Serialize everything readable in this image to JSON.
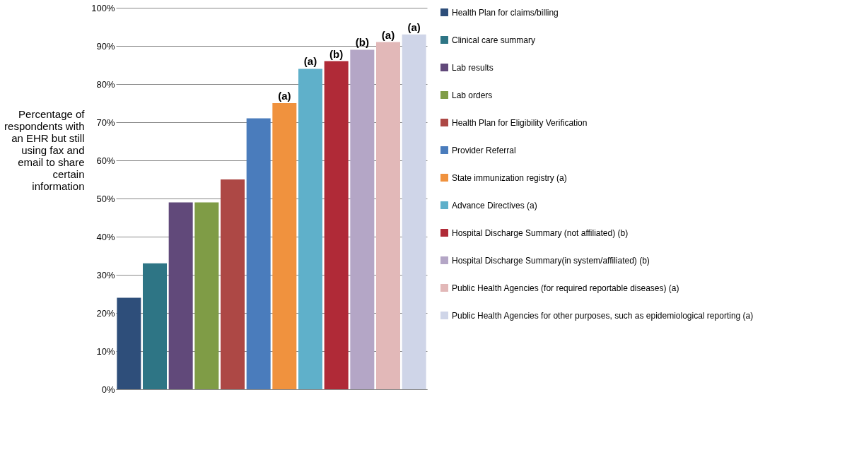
{
  "chart_data": {
    "type": "bar",
    "ylabel": "Percentage of respondents with an EHR but still using fax and email to share certain information",
    "categories": [
      null,
      null,
      null,
      null,
      null,
      null,
      null,
      null,
      null,
      null,
      null,
      null
    ],
    "series": [
      {
        "name": "Health Plan for claims/billing",
        "color": "#2e4e7a",
        "values": [
          24,
          null,
          null,
          null,
          null,
          null,
          null,
          null,
          null,
          null,
          null,
          null
        ]
      },
      {
        "name": "Clinical care summary",
        "color": "#2e7585",
        "values": [
          null,
          33,
          null,
          null,
          null,
          null,
          null,
          null,
          null,
          null,
          null,
          null
        ]
      },
      {
        "name": "Lab results",
        "color": "#61497a",
        "values": [
          null,
          null,
          49,
          null,
          null,
          null,
          null,
          null,
          null,
          null,
          null,
          null
        ]
      },
      {
        "name": "Lab orders",
        "color": "#7f9c46",
        "values": [
          null,
          null,
          null,
          49,
          null,
          null,
          null,
          null,
          null,
          null,
          null,
          null
        ]
      },
      {
        "name": "Health Plan for Eligibility Verification",
        "color": "#ad4845",
        "values": [
          null,
          null,
          null,
          null,
          55,
          null,
          null,
          null,
          null,
          null,
          null,
          null
        ]
      },
      {
        "name": "Provider Referral",
        "color": "#4a7cbc",
        "values": [
          null,
          null,
          null,
          null,
          null,
          71,
          null,
          null,
          null,
          null,
          null,
          null
        ]
      },
      {
        "name": "State immunization registry (a)",
        "color": "#f0923e",
        "values": [
          null,
          null,
          null,
          null,
          null,
          null,
          75,
          null,
          null,
          null,
          null,
          null
        ],
        "value_labels": [
          null,
          null,
          null,
          null,
          null,
          null,
          "(a)",
          null,
          null,
          null,
          null,
          null
        ]
      },
      {
        "name": "Advance Directives (a)",
        "color": "#5fb0ca",
        "values": [
          null,
          null,
          null,
          null,
          null,
          null,
          null,
          84,
          null,
          null,
          null,
          null
        ],
        "value_labels": [
          null,
          null,
          null,
          null,
          null,
          null,
          null,
          "(a)",
          null,
          null,
          null,
          null
        ]
      },
      {
        "name": "Hospital Discharge Summary (not affiliated) (b)",
        "color": "#b02a37",
        "values": [
          null,
          null,
          null,
          null,
          null,
          null,
          null,
          null,
          86,
          null,
          null,
          null
        ],
        "value_labels": [
          null,
          null,
          null,
          null,
          null,
          null,
          null,
          null,
          "(b)",
          null,
          null,
          null
        ]
      },
      {
        "name": "Hospital Discharge Summary(in system/affiliated) (b)",
        "color": "#b4a6c6",
        "values": [
          null,
          null,
          null,
          null,
          null,
          null,
          null,
          null,
          null,
          89,
          null,
          null
        ],
        "value_labels": [
          null,
          null,
          null,
          null,
          null,
          null,
          null,
          null,
          null,
          "(b)",
          null,
          null
        ]
      },
      {
        "name": "Public Health Agencies (for required reportable diseases) (a)",
        "color": "#e2b8b8",
        "values": [
          null,
          null,
          null,
          null,
          null,
          null,
          null,
          null,
          null,
          null,
          91,
          null
        ],
        "value_labels": [
          null,
          null,
          null,
          null,
          null,
          null,
          null,
          null,
          null,
          null,
          "(a)",
          null
        ]
      },
      {
        "name": "Public Health Agencies for other purposes, such as epidemiological reporting (a)",
        "color": "#cfd5e8",
        "values": [
          null,
          null,
          null,
          null,
          null,
          null,
          null,
          null,
          null,
          null,
          null,
          93
        ],
        "value_labels": [
          null,
          null,
          null,
          null,
          null,
          null,
          null,
          null,
          null,
          null,
          null,
          "(a)"
        ]
      }
    ],
    "ylim": [
      0,
      100
    ],
    "yticks": [
      {
        "value": 0,
        "label": "0%"
      },
      {
        "value": 10,
        "label": "10%"
      },
      {
        "value": 20,
        "label": "20%"
      },
      {
        "value": 30,
        "label": "30%"
      },
      {
        "value": 40,
        "label": "40%"
      },
      {
        "value": 50,
        "label": "50%"
      },
      {
        "value": 60,
        "label": "60%"
      },
      {
        "value": 70,
        "label": "70%"
      },
      {
        "value": 80,
        "label": "80%"
      },
      {
        "value": 90,
        "label": "90%"
      },
      {
        "value": 100,
        "label": "100%"
      }
    ],
    "grid": "y",
    "legend": "right",
    "tick_labels": "y"
  }
}
